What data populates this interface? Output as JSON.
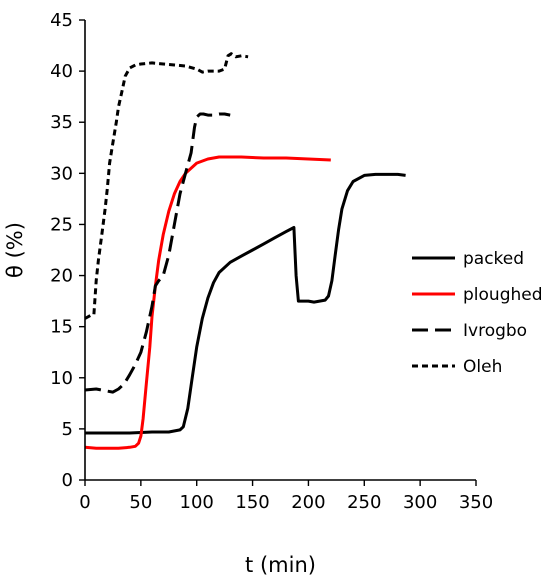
{
  "chart_data": {
    "type": "line",
    "title": "",
    "xlabel": "t (min)",
    "ylabel": "θ (%)",
    "xlim": [
      0,
      350
    ],
    "ylim": [
      0,
      45
    ],
    "xticks": [
      "0",
      "50",
      "100",
      "150",
      "200",
      "250",
      "300",
      "350"
    ],
    "yticks": [
      "0",
      "5",
      "10",
      "15",
      "20",
      "25",
      "30",
      "35",
      "40",
      "45"
    ],
    "grid": false,
    "legend_position": "right",
    "series": [
      {
        "name": "packed",
        "color": "#000000",
        "style": "solid",
        "x": [
          0,
          20,
          40,
          60,
          75,
          85,
          88,
          92,
          96,
          100,
          105,
          110,
          115,
          120,
          130,
          140,
          150,
          160,
          170,
          180,
          187,
          189,
          191,
          195,
          200,
          205,
          210,
          215,
          218,
          221,
          224,
          227,
          230,
          235,
          240,
          250,
          260,
          270,
          280,
          287
        ],
        "y": [
          4.6,
          4.6,
          4.6,
          4.7,
          4.7,
          4.9,
          5.2,
          7,
          10,
          13,
          15.8,
          17.8,
          19.3,
          20.3,
          21.3,
          21.9,
          22.5,
          23.1,
          23.7,
          24.3,
          24.7,
          20,
          17.5,
          17.5,
          17.5,
          17.4,
          17.5,
          17.6,
          18,
          19.5,
          22,
          24.5,
          26.5,
          28.3,
          29.2,
          29.8,
          29.9,
          29.9,
          29.9,
          29.8
        ]
      },
      {
        "name": "ploughed",
        "color": "#ff0000",
        "style": "solid",
        "x": [
          0,
          10,
          20,
          30,
          40,
          45,
          48,
          50,
          52,
          55,
          58,
          60,
          63,
          66,
          70,
          75,
          80,
          85,
          90,
          100,
          110,
          120,
          130,
          140,
          160,
          180,
          200,
          220
        ],
        "y": [
          3.2,
          3.1,
          3.1,
          3.1,
          3.2,
          3.3,
          3.6,
          4.3,
          6,
          9.5,
          13,
          16,
          19,
          21.5,
          24,
          26.3,
          28,
          29.2,
          30,
          31,
          31.4,
          31.6,
          31.6,
          31.6,
          31.5,
          31.5,
          31.4,
          31.3
        ]
      },
      {
        "name": "Ivrogbo",
        "color": "#000000",
        "style": "dash",
        "x": [
          0,
          10,
          20,
          25,
          30,
          35,
          40,
          45,
          50,
          55,
          60,
          63,
          66,
          70,
          75,
          80,
          85,
          90,
          95,
          98,
          100,
          103,
          106,
          110,
          115,
          120,
          125,
          130
        ],
        "y": [
          8.8,
          8.9,
          8.7,
          8.6,
          8.9,
          9.4,
          10.3,
          11.3,
          12.5,
          14.5,
          17,
          19,
          19.5,
          20,
          22,
          25,
          28,
          30,
          32,
          34.5,
          35.5,
          35.8,
          35.8,
          35.7,
          35.7,
          35.8,
          35.8,
          35.7
        ]
      },
      {
        "name": "Oleh",
        "color": "#000000",
        "style": "dot",
        "x": [
          0,
          5,
          8,
          10,
          12,
          15,
          18,
          20,
          22,
          25,
          28,
          30,
          33,
          36,
          40,
          45,
          50,
          60,
          70,
          80,
          90,
          100,
          105,
          110,
          115,
          120,
          125,
          128,
          131,
          135,
          140,
          146
        ],
        "y": [
          15.8,
          16.1,
          16.2,
          19.5,
          21.5,
          24,
          26.5,
          28.5,
          31,
          33,
          35,
          36.5,
          38,
          39.5,
          40.3,
          40.6,
          40.7,
          40.8,
          40.7,
          40.6,
          40.5,
          40.2,
          39.9,
          40,
          40,
          40,
          40.2,
          41.5,
          41.7,
          41.4,
          41.5,
          41.4
        ]
      }
    ]
  }
}
